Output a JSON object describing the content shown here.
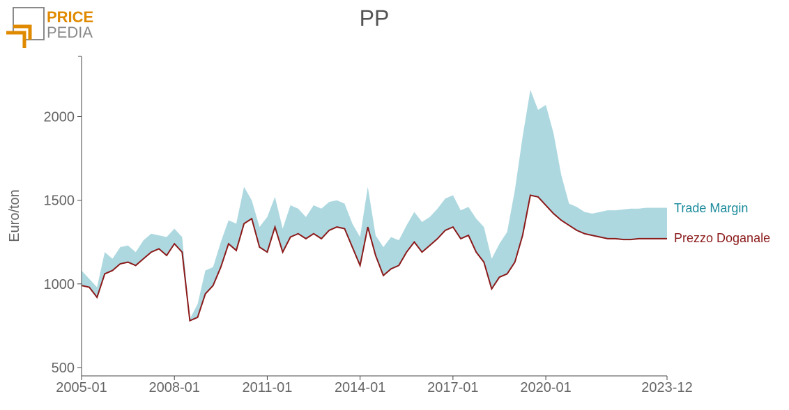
{
  "logo": {
    "line1": "PRICE",
    "line2": "PEDIA",
    "accent": "#E08A00",
    "grey": "#8a8a8a"
  },
  "chart_data": {
    "type": "area",
    "title": "PP",
    "xlabel": "",
    "ylabel": "Euro/ton",
    "xlim": [
      "2005-01",
      "2023-12"
    ],
    "ylim": [
      450,
      2360
    ],
    "xticks": [
      "2005-01",
      "2008-01",
      "2011-01",
      "2014-01",
      "2017-01",
      "2020-01",
      "2023-12"
    ],
    "yticks": [
      500,
      1000,
      1500,
      2000
    ],
    "grid": false,
    "legend": "direct labels at right end",
    "series": [
      {
        "name": "Prezzo Doganale",
        "role": "line",
        "color": "#8B1A1A",
        "x": [
          "2005-01",
          "2005-04",
          "2005-07",
          "2005-10",
          "2006-01",
          "2006-04",
          "2006-07",
          "2006-10",
          "2007-01",
          "2007-04",
          "2007-07",
          "2007-10",
          "2008-01",
          "2008-04",
          "2008-07",
          "2008-10",
          "2009-01",
          "2009-04",
          "2009-07",
          "2009-10",
          "2010-01",
          "2010-04",
          "2010-07",
          "2010-10",
          "2011-01",
          "2011-04",
          "2011-07",
          "2011-10",
          "2012-01",
          "2012-04",
          "2012-07",
          "2012-10",
          "2013-01",
          "2013-04",
          "2013-07",
          "2013-10",
          "2014-01",
          "2014-04",
          "2014-07",
          "2014-10",
          "2015-01",
          "2015-04",
          "2015-07",
          "2015-10",
          "2016-01",
          "2016-04",
          "2016-07",
          "2016-10",
          "2017-01",
          "2017-04",
          "2017-07",
          "2017-10",
          "2018-01",
          "2018-04",
          "2018-07",
          "2018-10",
          "2019-01",
          "2019-04",
          "2019-07",
          "2019-10",
          "2020-01",
          "2020-04",
          "2020-07",
          "2020-10",
          "2021-01",
          "2021-04",
          "2021-07",
          "2021-10",
          "2022-01",
          "2022-04",
          "2022-07",
          "2022-10",
          "2023-01",
          "2023-04",
          "2023-07",
          "2023-12"
        ],
        "values": [
          990,
          980,
          920,
          1060,
          1080,
          1120,
          1130,
          1110,
          1150,
          1190,
          1210,
          1170,
          1240,
          1190,
          780,
          800,
          940,
          990,
          1100,
          1240,
          1200,
          1360,
          1390,
          1220,
          1190,
          1340,
          1190,
          1280,
          1300,
          1270,
          1300,
          1270,
          1320,
          1340,
          1330,
          1220,
          1110,
          1340,
          1170,
          1050,
          1090,
          1110,
          1190,
          1250,
          1190,
          1230,
          1270,
          1320,
          1340,
          1270,
          1290,
          1190,
          1130,
          970,
          1040,
          1060,
          1130,
          1290,
          1530,
          1520,
          1470,
          1420,
          1380,
          1350,
          1320,
          1300,
          1290,
          1280,
          1270,
          1270,
          1265,
          1265,
          1270,
          1270,
          1270,
          1270
        ]
      },
      {
        "name": "Trade Margin",
        "role": "band",
        "color": "#ADD8E0",
        "label_color": "#1A8A9A",
        "x": [
          "2005-01",
          "2005-04",
          "2005-07",
          "2005-10",
          "2006-01",
          "2006-04",
          "2006-07",
          "2006-10",
          "2007-01",
          "2007-04",
          "2007-07",
          "2007-10",
          "2008-01",
          "2008-04",
          "2008-07",
          "2008-10",
          "2009-01",
          "2009-04",
          "2009-07",
          "2009-10",
          "2010-01",
          "2010-04",
          "2010-07",
          "2010-10",
          "2011-01",
          "2011-04",
          "2011-07",
          "2011-10",
          "2012-01",
          "2012-04",
          "2012-07",
          "2012-10",
          "2013-01",
          "2013-04",
          "2013-07",
          "2013-10",
          "2014-01",
          "2014-04",
          "2014-07",
          "2014-10",
          "2015-01",
          "2015-04",
          "2015-07",
          "2015-10",
          "2016-01",
          "2016-04",
          "2016-07",
          "2016-10",
          "2017-01",
          "2017-04",
          "2017-07",
          "2017-10",
          "2018-01",
          "2018-04",
          "2018-07",
          "2018-10",
          "2019-01",
          "2019-04",
          "2019-07",
          "2019-10",
          "2020-01",
          "2020-04",
          "2020-07",
          "2020-10",
          "2021-01",
          "2021-04",
          "2021-07",
          "2021-10",
          "2022-01",
          "2022-04",
          "2022-07",
          "2022-10",
          "2023-01",
          "2023-04",
          "2023-07",
          "2023-12"
        ],
        "values": [
          1080,
          1030,
          980,
          1190,
          1150,
          1220,
          1230,
          1190,
          1260,
          1300,
          1290,
          1280,
          1330,
          1280,
          790,
          880,
          1080,
          1100,
          1250,
          1380,
          1360,
          1580,
          1500,
          1340,
          1400,
          1520,
          1330,
          1470,
          1450,
          1400,
          1470,
          1450,
          1490,
          1500,
          1480,
          1360,
          1280,
          1580,
          1290,
          1220,
          1280,
          1260,
          1350,
          1430,
          1370,
          1400,
          1450,
          1510,
          1530,
          1440,
          1460,
          1390,
          1340,
          1150,
          1240,
          1310,
          1560,
          1880,
          2160,
          2040,
          2070,
          1900,
          1650,
          1480,
          1460,
          1430,
          1420,
          1430,
          1440,
          1440,
          1445,
          1450,
          1450,
          1455,
          1455,
          1455
        ]
      }
    ]
  }
}
